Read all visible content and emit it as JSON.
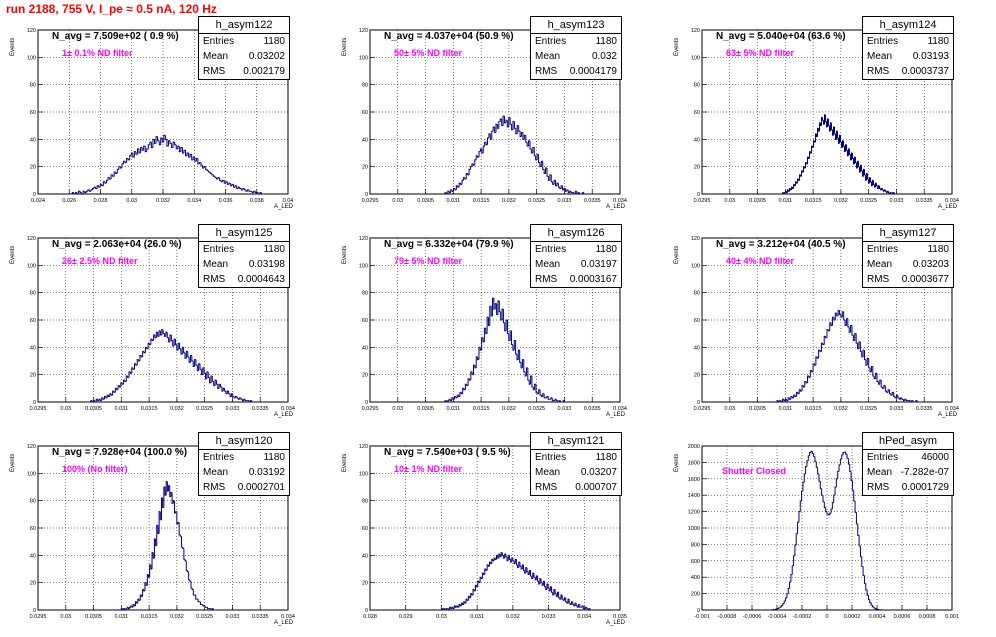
{
  "run_title": "run 2188,   755 V, I_pe ≈ 0.5 nA, 120 Hz",
  "stat_labels": {
    "entries": "Entries",
    "mean": "Mean",
    "rms": "RMS"
  },
  "chart_data": [
    {
      "type": "histogram",
      "hist_name": "h_asym122",
      "n_avg": "N_avg = 7.509e+02 ( 0.9 %)",
      "note": "1± 0.1% ND filter",
      "note_color": "#ff00ff",
      "xlabel": "A_LED",
      "ylabel": "Events",
      "xlim": [
        0.024,
        0.04
      ],
      "ylim": [
        0,
        120
      ],
      "xticks": [
        "0.024",
        "0.026",
        "0.028",
        "0.03",
        "0.032",
        "0.034",
        "0.036",
        "0.038",
        "0.04"
      ],
      "yticks": [
        "0",
        "20",
        "40",
        "60",
        "80",
        "100",
        "120"
      ],
      "grid": true,
      "stats": {
        "entries": "1180",
        "mean": "0.03202",
        "rms": "0.002179"
      },
      "bin_edges": [
        0.0261,
        0.0384
      ],
      "values": [
        0,
        1,
        0,
        1,
        0,
        2,
        1,
        0,
        2,
        1,
        2,
        3,
        2,
        3,
        4,
        5,
        4,
        6,
        5,
        7,
        6,
        9,
        8,
        10,
        12,
        11,
        14,
        13,
        16,
        15,
        18,
        20,
        19,
        22,
        24,
        23,
        26,
        25,
        28,
        30,
        27,
        31,
        29,
        33,
        30,
        34,
        32,
        35,
        31,
        33,
        36,
        38,
        34,
        40,
        37,
        42,
        39,
        36,
        41,
        38,
        43,
        40,
        35,
        39,
        37,
        34,
        38,
        36,
        33,
        35,
        31,
        34,
        30,
        32,
        28,
        30,
        27,
        29,
        25,
        27,
        24,
        26,
        22,
        23,
        21,
        19,
        20,
        18,
        17,
        16,
        15,
        14,
        13,
        12,
        11,
        12,
        10,
        9,
        10,
        8,
        9,
        7,
        8,
        6,
        7,
        5,
        6,
        4,
        5,
        4,
        3,
        4,
        3,
        2,
        3,
        2,
        2,
        1,
        2,
        1,
        1,
        0,
        1,
        0
      ]
    },
    {
      "type": "histogram",
      "hist_name": "h_asym123",
      "n_avg": "N_avg = 4.037e+04 (50.9 %)",
      "note": "50± 5% ND filter",
      "note_color": "#ff00ff",
      "xlabel": "A_LED",
      "ylabel": "Events",
      "xlim": [
        0.0295,
        0.034
      ],
      "ylim": [
        0,
        120
      ],
      "xticks": [
        "0.0295",
        "0.03",
        "0.0305",
        "0.031",
        "0.0315",
        "0.032",
        "0.0325",
        "0.033",
        "0.0335",
        "0.034"
      ],
      "yticks": [
        "0",
        "20",
        "40",
        "60",
        "80",
        "100",
        "120"
      ],
      "grid": true,
      "stats": {
        "entries": "1180",
        "mean": "0.032",
        "rms": "0.0004179"
      },
      "bin_edges": [
        0.03085,
        0.0334
      ],
      "values": [
        1,
        0,
        2,
        1,
        3,
        2,
        4,
        3,
        6,
        5,
        8,
        7,
        10,
        12,
        11,
        15,
        14,
        18,
        20,
        22,
        21,
        25,
        28,
        27,
        31,
        33,
        30,
        35,
        38,
        36,
        41,
        44,
        40,
        46,
        49,
        45,
        51,
        48,
        53,
        55,
        50,
        57,
        52,
        54,
        49,
        56,
        51,
        47,
        53,
        48,
        44,
        50,
        46,
        42,
        45,
        40,
        43,
        38,
        35,
        39,
        33,
        30,
        34,
        28,
        25,
        29,
        23,
        20,
        24,
        18,
        15,
        19,
        13,
        10,
        14,
        9,
        7,
        10,
        6,
        8,
        5,
        4,
        6,
        3,
        4,
        2,
        3,
        1,
        2,
        1,
        1,
        0,
        2,
        0,
        1,
        0,
        0,
        1,
        0,
        0
      ]
    },
    {
      "type": "histogram",
      "hist_name": "h_asym124",
      "n_avg": "N_avg = 5.040e+04 (63.6 %)",
      "note": "63± 5% ND filter",
      "note_color": "#ff00ff",
      "xlabel": "A_LED",
      "ylabel": "Events",
      "xlim": [
        0.0295,
        0.034
      ],
      "ylim": [
        0,
        120
      ],
      "xticks": [
        "0.0295",
        "0.03",
        "0.0305",
        "0.031",
        "0.0315",
        "0.032",
        "0.0325",
        "0.033",
        "0.0335",
        "0.034"
      ],
      "yticks": [
        "0",
        "20",
        "40",
        "60",
        "80",
        "100",
        "120"
      ],
      "grid": true,
      "stats": {
        "entries": "1180",
        "mean": "0.03193",
        "rms": "0.0003737"
      },
      "bin_edges": [
        0.03095,
        0.033
      ],
      "values": [
        1,
        0,
        1,
        2,
        1,
        3,
        2,
        4,
        3,
        5,
        4,
        7,
        6,
        9,
        8,
        11,
        10,
        14,
        13,
        17,
        16,
        20,
        19,
        23,
        22,
        27,
        26,
        31,
        30,
        35,
        34,
        39,
        38,
        44,
        42,
        48,
        46,
        52,
        50,
        56,
        54,
        51,
        58,
        53,
        49,
        55,
        50,
        46,
        52,
        47,
        43,
        49,
        44,
        40,
        46,
        41,
        37,
        43,
        38,
        34,
        39,
        35,
        31,
        36,
        32,
        28,
        33,
        29,
        25,
        30,
        26,
        22,
        27,
        23,
        19,
        24,
        20,
        16,
        21,
        17,
        13,
        18,
        14,
        10,
        15,
        11,
        8,
        12,
        9,
        6,
        10,
        7,
        5,
        8,
        6,
        4,
        6,
        4,
        3,
        4,
        3,
        2,
        3,
        2,
        1,
        2,
        1,
        0,
        1,
        1,
        0,
        1,
        0,
        0
      ]
    },
    {
      "type": "histogram",
      "hist_name": "h_asym125",
      "n_avg": "N_avg = 2.063e+04 (26.0 %)",
      "note": "26± 2.5% ND filter",
      "note_color": "#ff00ff",
      "xlabel": "A_LED",
      "ylabel": "Events",
      "xlim": [
        0.0295,
        0.034
      ],
      "ylim": [
        0,
        120
      ],
      "xticks": [
        "0.0295",
        "0.03",
        "0.0305",
        "0.031",
        "0.0315",
        "0.032",
        "0.0325",
        "0.033",
        "0.0335",
        "0.034"
      ],
      "yticks": [
        "0",
        "20",
        "40",
        "60",
        "80",
        "100",
        "120"
      ],
      "grid": true,
      "stats": {
        "entries": "1180",
        "mean": "0.03198",
        "rms": "0.0004643"
      },
      "bin_edges": [
        0.03045,
        0.0334
      ],
      "values": [
        1,
        0,
        1,
        0,
        2,
        1,
        2,
        1,
        3,
        2,
        4,
        3,
        5,
        4,
        6,
        5,
        8,
        7,
        10,
        9,
        12,
        11,
        14,
        13,
        16,
        15,
        19,
        18,
        22,
        21,
        25,
        24,
        28,
        27,
        31,
        30,
        34,
        33,
        37,
        36,
        40,
        39,
        43,
        42,
        46,
        45,
        49,
        47,
        51,
        48,
        52,
        49,
        53,
        50,
        48,
        51,
        47,
        44,
        49,
        45,
        41,
        46,
        42,
        38,
        43,
        39,
        35,
        40,
        36,
        32,
        37,
        33,
        29,
        34,
        30,
        26,
        31,
        27,
        23,
        28,
        24,
        20,
        25,
        21,
        17,
        22,
        18,
        14,
        19,
        15,
        12,
        16,
        13,
        10,
        13,
        11,
        8,
        10,
        8,
        6,
        8,
        6,
        4,
        6,
        4,
        3,
        4,
        3,
        2,
        3,
        2,
        1,
        2,
        1,
        1,
        1,
        0,
        1,
        0,
        0
      ]
    },
    {
      "type": "histogram",
      "hist_name": "h_asym126",
      "n_avg": "N_avg = 6.332e+04 (79.9 %)",
      "note": "79± 5% ND filter",
      "note_color": "#ff00ff",
      "xlabel": "A_LED",
      "ylabel": "Events",
      "xlim": [
        0.0295,
        0.034
      ],
      "ylim": [
        0,
        120
      ],
      "xticks": [
        "0.0295",
        "0.03",
        "0.0305",
        "0.031",
        "0.0315",
        "0.032",
        "0.0325",
        "0.033",
        "0.0335",
        "0.034"
      ],
      "yticks": [
        "0",
        "20",
        "40",
        "60",
        "80",
        "100",
        "120"
      ],
      "grid": true,
      "stats": {
        "entries": "1180",
        "mean": "0.03197",
        "rms": "0.0003167"
      },
      "bin_edges": [
        0.03085,
        0.03305
      ],
      "values": [
        1,
        0,
        1,
        2,
        1,
        3,
        2,
        4,
        3,
        5,
        4,
        7,
        6,
        10,
        9,
        13,
        12,
        17,
        16,
        22,
        20,
        27,
        25,
        33,
        31,
        40,
        38,
        47,
        44,
        54,
        50,
        62,
        56,
        70,
        63,
        76,
        68,
        72,
        64,
        74,
        66,
        60,
        68,
        58,
        52,
        60,
        50,
        45,
        52,
        42,
        38,
        45,
        35,
        31,
        38,
        29,
        25,
        31,
        22,
        19,
        25,
        16,
        13,
        19,
        11,
        9,
        13,
        7,
        6,
        9,
        5,
        4,
        6,
        3,
        3,
        4,
        2,
        2,
        3,
        1,
        1,
        2,
        1,
        0,
        1,
        0,
        0,
        1,
        0,
        0
      ]
    },
    {
      "type": "histogram",
      "hist_name": "h_asym127",
      "n_avg": "N_avg = 3.212e+04 (40.5 %)",
      "note": "40± 4% ND filter",
      "note_color": "#ff00ff",
      "xlabel": "A_LED",
      "ylabel": "Events",
      "xlim": [
        0.0295,
        0.034
      ],
      "ylim": [
        0,
        120
      ],
      "xticks": [
        "0.0295",
        "0.03",
        "0.0305",
        "0.031",
        "0.0315",
        "0.032",
        "0.0325",
        "0.033",
        "0.0335",
        "0.034"
      ],
      "yticks": [
        "0",
        "20",
        "40",
        "60",
        "80",
        "100",
        "120"
      ],
      "grid": true,
      "stats": {
        "entries": "1180",
        "mean": "0.03203",
        "rms": "0.0003677"
      },
      "bin_edges": [
        0.03085,
        0.03345
      ],
      "values": [
        1,
        0,
        1,
        0,
        2,
        1,
        2,
        1,
        3,
        2,
        4,
        3,
        5,
        4,
        7,
        6,
        9,
        8,
        12,
        11,
        15,
        14,
        19,
        18,
        23,
        22,
        28,
        27,
        33,
        32,
        38,
        37,
        43,
        42,
        48,
        47,
        53,
        52,
        58,
        56,
        62,
        60,
        65,
        63,
        67,
        64,
        62,
        66,
        60,
        56,
        61,
        55,
        51,
        56,
        49,
        45,
        50,
        43,
        39,
        44,
        37,
        33,
        38,
        31,
        27,
        32,
        25,
        22,
        26,
        19,
        17,
        21,
        15,
        13,
        16,
        11,
        10,
        12,
        8,
        7,
        9,
        6,
        5,
        7,
        4,
        3,
        5,
        3,
        2,
        3,
        2,
        1,
        2,
        1,
        1,
        1,
        0,
        1,
        0,
        0,
        1,
        0,
        0,
        0
      ]
    },
    {
      "type": "histogram",
      "hist_name": "h_asym120",
      "n_avg": "N_avg = 7.928e+04 (100.0 %)",
      "note": "100% (No filter)",
      "note_color": "#ff00ff",
      "xlabel": "A_LED",
      "ylabel": "Events",
      "xlim": [
        0.0295,
        0.034
      ],
      "ylim": [
        0,
        120
      ],
      "xticks": [
        "0.0295",
        "0.03",
        "0.0305",
        "0.031",
        "0.0315",
        "0.032",
        "0.0325",
        "0.033",
        "0.0335",
        "0.034"
      ],
      "yticks": [
        "0",
        "20",
        "40",
        "60",
        "80",
        "100",
        "120"
      ],
      "grid": true,
      "stats": {
        "entries": "1180",
        "mean": "0.03192",
        "rms": "0.0002701"
      },
      "bin_edges": [
        0.031,
        0.0327
      ],
      "values": [
        1,
        0,
        1,
        0,
        1,
        2,
        1,
        2,
        3,
        2,
        4,
        3,
        6,
        5,
        8,
        7,
        11,
        10,
        15,
        14,
        20,
        18,
        26,
        24,
        33,
        30,
        42,
        38,
        52,
        47,
        62,
        56,
        72,
        66,
        82,
        75,
        90,
        84,
        94,
        87,
        91,
        83,
        86,
        78,
        80,
        71,
        72,
        63,
        64,
        55,
        54,
        46,
        45,
        37,
        36,
        29,
        28,
        22,
        21,
        16,
        15,
        11,
        11,
        8,
        8,
        6,
        6,
        4,
        4,
        3,
        3,
        2,
        2,
        1,
        1,
        1,
        0,
        1,
        0,
        0
      ]
    },
    {
      "type": "histogram",
      "hist_name": "h_asym121",
      "n_avg": "N_avg = 7.540e+03 ( 9.5 %)",
      "note": "10± 1% ND filter",
      "note_color": "#ff00ff",
      "xlabel": "A_LED",
      "ylabel": "Events",
      "xlim": [
        0.028,
        0.035
      ],
      "ylim": [
        0,
        120
      ],
      "xticks": [
        "0.028",
        "0.029",
        "0.03",
        "0.031",
        "0.032",
        "0.033",
        "0.034",
        "0.035"
      ],
      "yticks": [
        "0",
        "20",
        "40",
        "60",
        "80",
        "100",
        "120"
      ],
      "grid": true,
      "stats": {
        "entries": "1180",
        "mean": "0.03207",
        "rms": "0.000707"
      },
      "bin_edges": [
        0.03,
        0.0342
      ],
      "values": [
        1,
        0,
        1,
        0,
        1,
        1,
        0,
        2,
        1,
        2,
        1,
        3,
        2,
        3,
        2,
        4,
        3,
        5,
        4,
        6,
        5,
        8,
        7,
        10,
        9,
        12,
        11,
        15,
        14,
        18,
        17,
        21,
        20,
        24,
        23,
        27,
        26,
        30,
        29,
        33,
        32,
        35,
        34,
        37,
        36,
        38,
        37,
        40,
        38,
        41,
        39,
        42,
        40,
        38,
        41,
        39,
        36,
        40,
        37,
        35,
        38,
        36,
        34,
        37,
        33,
        31,
        35,
        32,
        30,
        33,
        29,
        27,
        31,
        28,
        26,
        29,
        25,
        23,
        27,
        24,
        22,
        25,
        21,
        19,
        23,
        20,
        18,
        21,
        17,
        15,
        19,
        16,
        14,
        17,
        13,
        11,
        15,
        12,
        10,
        13,
        9,
        8,
        11,
        8,
        7,
        9,
        6,
        5,
        8,
        5,
        4,
        6,
        4,
        3,
        5,
        3,
        2,
        4,
        2,
        2,
        3,
        1,
        1,
        2,
        1,
        0,
        1,
        0
      ]
    },
    {
      "type": "histogram",
      "hist_name": "hPed_asym",
      "n_avg": "",
      "note": "Shutter Closed",
      "note_color": "#ff00ff",
      "xlabel": "",
      "ylabel": "Events",
      "xlim": [
        -0.001,
        0.001
      ],
      "ylim": [
        0,
        2000
      ],
      "xticks": [
        "-0.001",
        "-0.0008",
        "-0.0006",
        "-0.0004",
        "-0.0002",
        "0",
        "0.0002",
        "0.0004",
        "0.0006",
        "0.0008",
        "0.001"
      ],
      "yticks": [
        "0",
        "200",
        "400",
        "600",
        "800",
        "1000",
        "1200",
        "1400",
        "1600",
        "1800",
        "2000"
      ],
      "grid": true,
      "stats": {
        "entries": "46000",
        "mean": "-7.282e-07",
        "rms": "0.0001729"
      },
      "bin_edges": [
        -0.00046,
        0.00046
      ],
      "values": [
        0,
        2,
        3,
        5,
        8,
        12,
        18,
        26,
        38,
        55,
        78,
        108,
        148,
        198,
        262,
        340,
        432,
        540,
        660,
        792,
        930,
        1070,
        1200,
        1330,
        1450,
        1560,
        1660,
        1750,
        1820,
        1880,
        1920,
        1935,
        1910,
        1870,
        1810,
        1740,
        1660,
        1570,
        1480,
        1400,
        1320,
        1250,
        1200,
        1170,
        1160,
        1180,
        1230,
        1310,
        1400,
        1500,
        1600,
        1690,
        1770,
        1840,
        1890,
        1920,
        1925,
        1900,
        1850,
        1780,
        1690,
        1580,
        1460,
        1330,
        1190,
        1050,
        910,
        780,
        650,
        530,
        420,
        325,
        245,
        180,
        128,
        90,
        60,
        40,
        26,
        16,
        10,
        6,
        3,
        2,
        1,
        0
      ]
    }
  ]
}
